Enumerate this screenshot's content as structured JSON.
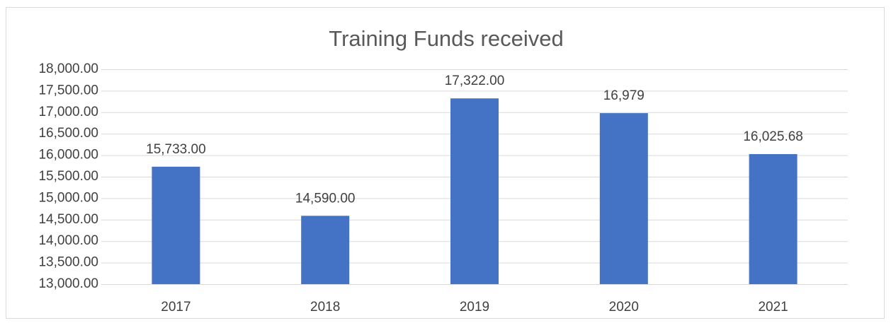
{
  "chart_data": {
    "type": "bar",
    "title": "Training Funds received",
    "categories": [
      "2017",
      "2018",
      "2019",
      "2020",
      "2021"
    ],
    "values": [
      15733,
      14590,
      17322,
      16979,
      16025.68
    ],
    "value_labels": [
      "15,733.00",
      "14,590.00",
      "17,322.00",
      "16,979",
      "16,025.68"
    ],
    "color": "#4472c4",
    "ylim": [
      13000,
      18000
    ],
    "yticks": [
      {
        "value": 13000,
        "label": "13,000.00"
      },
      {
        "value": 13500,
        "label": "13,500.00"
      },
      {
        "value": 14000,
        "label": "14,000.00"
      },
      {
        "value": 14500,
        "label": "14,500.00"
      },
      {
        "value": 15000,
        "label": "15,000.00"
      },
      {
        "value": 15500,
        "label": "15,500.00"
      },
      {
        "value": 16000,
        "label": "16,000.00"
      },
      {
        "value": 16500,
        "label": "16,500.00"
      },
      {
        "value": 17000,
        "label": "17,000.00"
      },
      {
        "value": 17500,
        "label": "17,500.00"
      },
      {
        "value": 18000,
        "label": "18,000.00"
      }
    ],
    "grid": true
  }
}
